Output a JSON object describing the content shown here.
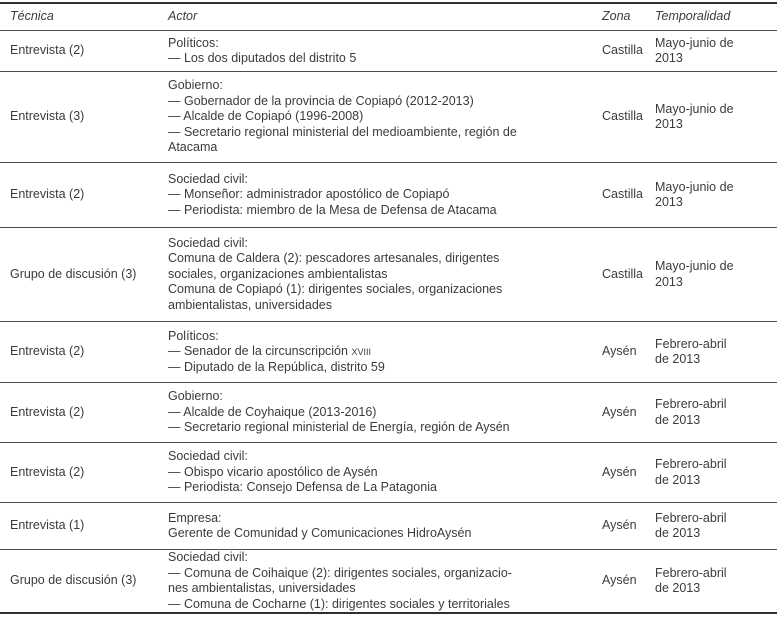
{
  "table": {
    "columns": [
      "Técnica",
      "Actor",
      "Zona",
      "Temporalidad"
    ],
    "rows": [
      {
        "tecnica": "Entrevista (2)",
        "actor_lines": [
          "Políticos:",
          "— Los dos diputados del distrito 5"
        ],
        "zona": "Castilla",
        "temporalidad_lines": [
          "Mayo-junio de",
          "2013"
        ]
      },
      {
        "tecnica": "Entrevista (3)",
        "actor_lines": [
          "Gobierno:",
          "— Gobernador de la provincia de Copiapó (2012-2013)",
          "— Alcalde de Copiapó (1996-2008)",
          "— Secretario regional ministerial del medioambiente, región de",
          "Atacama"
        ],
        "zona": "Castilla",
        "temporalidad_lines": [
          "Mayo-junio de",
          "2013"
        ]
      },
      {
        "tecnica": "Entrevista (2)",
        "actor_lines": [
          "Sociedad civil:",
          "— Monseñor: administrador apostólico de Copiapó",
          "— Periodista: miembro de la Mesa de Defensa de Atacama"
        ],
        "zona": "Castilla",
        "temporalidad_lines": [
          "Mayo-junio de",
          "2013"
        ]
      },
      {
        "tecnica": "Grupo de discusión (3)",
        "actor_lines": [
          "Sociedad civil:",
          "Comuna de Caldera (2): pescadores artesanales, dirigentes",
          "sociales, organizaciones ambientalistas",
          "Comuna de Copiapó (1): dirigentes sociales, organizaciones",
          "ambientalistas, universidades"
        ],
        "zona": "Castilla",
        "temporalidad_lines": [
          "Mayo-junio de",
          "2013"
        ]
      },
      {
        "tecnica": "Entrevista (2)",
        "actor_lines": [
          "Políticos:",
          "— Senador de la circunscripción ",
          "— Diputado de la República, distrito 59"
        ],
        "smallcaps": "xviii",
        "zona": "Aysén",
        "temporalidad_lines": [
          "Febrero-abril",
          "de 2013"
        ]
      },
      {
        "tecnica": "Entrevista (2)",
        "actor_lines": [
          "Gobierno:",
          "— Alcalde de Coyhaique (2013-2016)",
          "— Secretario regional ministerial de Energía, región de Aysén"
        ],
        "zona": "Aysén",
        "temporalidad_lines": [
          "Febrero-abril",
          "de 2013"
        ]
      },
      {
        "tecnica": "Entrevista (2)",
        "actor_lines": [
          "Sociedad civil:",
          "— Obispo vicario apostólico de Aysén",
          "— Periodista: Consejo Defensa de La Patagonia"
        ],
        "zona": "Aysén",
        "temporalidad_lines": [
          "Febrero-abril",
          "de 2013"
        ]
      },
      {
        "tecnica": "Entrevista (1)",
        "actor_lines": [
          "Empresa:",
          "Gerente de Comunidad y Comunicaciones HidroAysén"
        ],
        "zona": "Aysén",
        "temporalidad_lines": [
          "Febrero-abril",
          "de 2013"
        ]
      },
      {
        "tecnica": "Grupo de discusión (3)",
        "actor_lines": [
          "Sociedad civil:",
          "— Comuna de Coihaique (2): dirigentes sociales, organizacio-",
          "nes ambientalistas, universidades",
          "— Comuna de Cocharne (1): dirigentes sociales y territoriales"
        ],
        "zona": "Aysén",
        "temporalidad_lines": [
          "Febrero-abril",
          "de 2013"
        ]
      }
    ]
  }
}
